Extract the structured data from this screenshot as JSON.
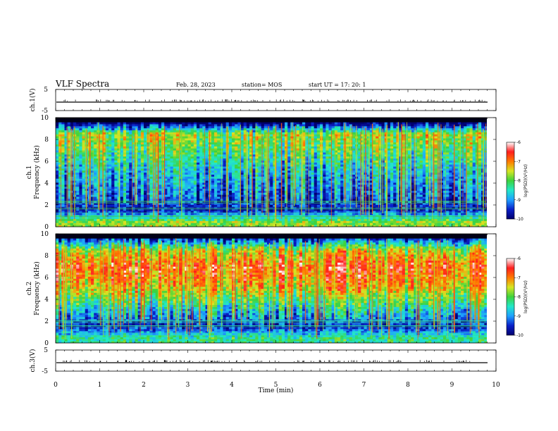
{
  "header": {
    "title": "VLF Spectra",
    "date": "Feb. 28, 2023",
    "station": "station= MOS",
    "start": "start  UT  =   17: 20: 1"
  },
  "colors": {
    "cmap": [
      "#00006e",
      "#0a20c8",
      "#1fa0ff",
      "#22e8c8",
      "#3dd23d",
      "#d6e624",
      "#ff7a00",
      "#ff1e1e",
      "#ffffff"
    ]
  },
  "chart_data": [
    {
      "type": "line",
      "name": "ch1-waveform",
      "ylabel": "ch.1(V)",
      "ylim": [
        -5,
        5
      ],
      "yticks": [
        "5",
        "-5"
      ],
      "baseline_value": -1,
      "x": [
        0,
        10
      ]
    },
    {
      "type": "heatmap",
      "name": "ch1-spectrogram",
      "ylabel": "ch.1\nFrequency  (kHz)",
      "xlim": [
        0,
        10
      ],
      "ylim": [
        0,
        10
      ],
      "yticks": [
        "0",
        "2",
        "4",
        "6",
        "8",
        "10"
      ],
      "colorbar": {
        "label": "log(PSD)(V²/Hz)",
        "ticks": [
          "-6",
          "-7",
          "-8",
          "-9",
          "-10"
        ],
        "range": [
          -10,
          -6
        ]
      },
      "profile": [
        {
          "freq": 0.5,
          "logpsd": -7.8
        },
        {
          "freq": 1.5,
          "logpsd": -9.6
        },
        {
          "freq": 3.0,
          "logpsd": -9.2
        },
        {
          "freq": 5.0,
          "logpsd": -8.8
        },
        {
          "freq": 7.0,
          "logpsd": -8.1
        },
        {
          "freq": 8.5,
          "logpsd": -7.7
        },
        {
          "freq": 9.5,
          "logpsd": -10.0
        }
      ]
    },
    {
      "type": "heatmap",
      "name": "ch2-spectrogram",
      "ylabel": "ch.2\nFrequency  (kHz)",
      "xlim": [
        0,
        10
      ],
      "ylim": [
        0,
        10
      ],
      "yticks": [
        "0",
        "2",
        "4",
        "6",
        "8",
        "10"
      ],
      "colorbar": {
        "label": "log(PSD)(V²/Hz)",
        "ticks": [
          "-6",
          "-7",
          "-8",
          "-9",
          "-10"
        ],
        "range": [
          -10,
          -6
        ]
      },
      "profile": [
        {
          "freq": 0.5,
          "logpsd": -8.3
        },
        {
          "freq": 1.5,
          "logpsd": -9.6
        },
        {
          "freq": 3.0,
          "logpsd": -8.7
        },
        {
          "freq": 5.0,
          "logpsd": -7.4
        },
        {
          "freq": 7.0,
          "logpsd": -6.8
        },
        {
          "freq": 8.5,
          "logpsd": -7.6
        },
        {
          "freq": 9.5,
          "logpsd": -9.4
        }
      ]
    },
    {
      "type": "line",
      "name": "ch3-waveform",
      "ylabel": "ch.3(V)",
      "ylim": [
        -5,
        5
      ],
      "yticks": [
        "5",
        "-5"
      ],
      "baseline_value": -1,
      "x": [
        0,
        10
      ]
    }
  ],
  "xaxis": {
    "label": "Time  (min)",
    "ticks": [
      "0",
      "1",
      "2",
      "3",
      "4",
      "5",
      "6",
      "7",
      "8",
      "9",
      "10"
    ],
    "range": [
      0,
      10
    ]
  }
}
